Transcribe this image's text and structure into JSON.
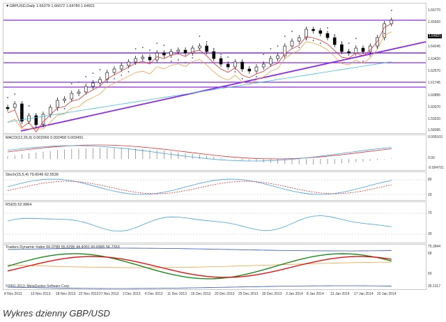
{
  "main_chart": {
    "label": "▼GBPUSD,Daily  1.6637​9 1.66672 1.64780 1.64921",
    "price_scale": [
      "1.66770",
      "1.65920",
      "1.64921",
      "1.64245",
      "1.63420",
      "1.62570",
      "1.61745",
      "1.60895",
      "1.60070",
      "1.59220",
      "1.58395"
    ],
    "colors": {
      "bull": "#ffffff",
      "bear": "#000000",
      "hline": "#8a2be2",
      "trend": "#8a2be2",
      "ma_fast": "#e03030",
      "ma_mid": "#f0a040",
      "ma_slow": "#40c0e0",
      "psar": "#2040a0"
    }
  },
  "macd": {
    "label": "MACD(12,26,9) 0.002066 0.002458 0.003491",
    "scale": [
      "0.009103",
      "0.00",
      "-0.004701"
    ]
  },
  "stoch": {
    "label": "Stoch(15,5,4) 79.6046 62.5539",
    "scale": [
      "80",
      "20"
    ]
  },
  "rsi": {
    "label": "RSI(9) 52.9964",
    "scale": [
      "70",
      "30"
    ]
  },
  "tdi": {
    "label": "Traders Dynamic Index 66.0789 55.6295 44.4001 60.6995 56.7353",
    "scale": [
      "75.2844",
      "68",
      "50",
      "35.1317"
    ]
  },
  "copyright": "©2001-2013, MetaQuotes Software Corp.",
  "dates": [
    "8 Nov 2013",
    "13 Nov 2013",
    "18 Nov 2013",
    "22 Nov 2013",
    "27 Nov 2013",
    "2 Dec 2013",
    "6 Dec 2013",
    "11 Dec 2013",
    "16 Dec 2013",
    "20 Dec 2013",
    "25 Dec 2013",
    "30 Dec 2013",
    "3 Jan 2014",
    "8 Jan 2014",
    "13 Jan 2014",
    "17 Jan 2014",
    "22 Jan 2014"
  ],
  "caption": "Wykres dzienny GBP/USD"
}
